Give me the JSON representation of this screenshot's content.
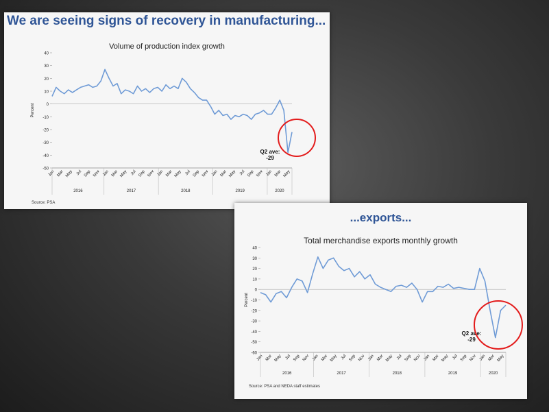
{
  "slide1": {
    "headline": "We are seeing signs of recovery in manufacturing...",
    "source": "Source: PSA"
  },
  "slide2": {
    "headline": "...exports...",
    "source": "Source: PSA and NEDA staff estimates"
  },
  "chart_data": [
    {
      "type": "line",
      "title": "Volume of production index growth",
      "ylabel": "Percent",
      "ylim": [
        -50,
        40
      ],
      "yticks": [
        40,
        30,
        20,
        10,
        0,
        -10,
        -20,
        -30,
        -40,
        -50
      ],
      "xticks": [
        "Jan",
        "Mar",
        "May",
        "Jul",
        "Sep",
        "Nov",
        "Jan",
        "Mar",
        "May",
        "Jul",
        "Sep",
        "Nov",
        "Jan",
        "Mar",
        "May",
        "Jul",
        "Sep",
        "Nov",
        "Jan",
        "Mar",
        "May",
        "Jul",
        "Sep",
        "Nov",
        "Jan",
        "Mar",
        "May"
      ],
      "years": [
        "2016",
        "2017",
        "2018",
        "2019",
        "2020"
      ],
      "annotation": "Q2 ave:\n-29",
      "color": "#6f9bd6",
      "series": [
        {
          "values": [
            6,
            13,
            10,
            8,
            11,
            9,
            11,
            13,
            14,
            15,
            13,
            14,
            18,
            27,
            20,
            14,
            16,
            8,
            11,
            10,
            8,
            14,
            10,
            12,
            9,
            12,
            13,
            10,
            15,
            12,
            14,
            12,
            20,
            17,
            12,
            9,
            5,
            3,
            3,
            -2,
            -8,
            -5,
            -9,
            -8,
            -12,
            -9,
            -10,
            -8,
            -9,
            -12,
            -8,
            -7,
            -5,
            -8,
            -8,
            -3,
            3,
            -5,
            -38,
            -22
          ]
        }
      ]
    },
    {
      "type": "line",
      "title": "Total merchandise exports monthly growth",
      "ylabel": "Percent",
      "ylim": [
        -60,
        40
      ],
      "yticks": [
        40,
        30,
        20,
        10,
        0,
        -10,
        -20,
        -30,
        -40,
        -50,
        -60
      ],
      "xticks": [
        "Jan",
        "Mar",
        "May",
        "Jul",
        "Sep",
        "Nov",
        "Jan",
        "Mar",
        "May",
        "Jul",
        "Sep",
        "Nov",
        "Jan",
        "Mar",
        "May",
        "Jul",
        "Sep",
        "Nov",
        "Jan",
        "Mar",
        "May",
        "Jul",
        "Sep",
        "Nov",
        "Jan",
        "Mar",
        "May"
      ],
      "years": [
        "2016",
        "2017",
        "2018",
        "2019",
        "2020"
      ],
      "annotation": "Q2 ave:\n-29",
      "color": "#6f9bd6",
      "series": [
        {
          "values": [
            -3,
            -5,
            -12,
            -4,
            -2,
            -8,
            2,
            10,
            8,
            -3,
            15,
            31,
            20,
            28,
            30,
            22,
            18,
            20,
            12,
            17,
            10,
            14,
            5,
            2,
            0,
            -2,
            3,
            4,
            2,
            6,
            0,
            -12,
            -2,
            -2,
            3,
            2,
            5,
            1,
            2,
            1,
            0,
            0,
            20,
            8,
            -20,
            -46,
            -20,
            -15
          ]
        }
      ]
    }
  ]
}
